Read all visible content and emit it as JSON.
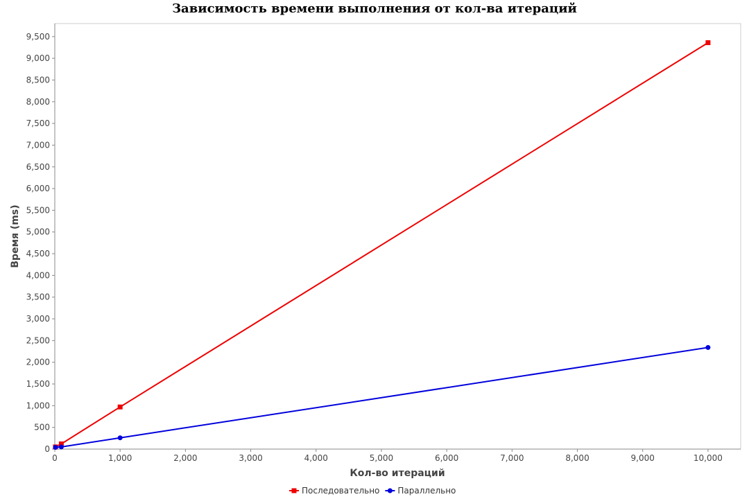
{
  "chart_data": {
    "type": "line",
    "title": "Зависимость времени выполнения от кол-ва итераций",
    "xlabel": "Кол-во итераций",
    "ylabel": "Время (ms)",
    "xlim": [
      0,
      10500
    ],
    "ylim": [
      0,
      9800
    ],
    "x_ticks": [
      0,
      1000,
      2000,
      3000,
      4000,
      5000,
      6000,
      7000,
      8000,
      9000,
      10000
    ],
    "x_tick_labels": [
      "0",
      "1,000",
      "2,000",
      "3,000",
      "4,000",
      "5,000",
      "6,000",
      "7,000",
      "8,000",
      "9,000",
      "10,000"
    ],
    "y_ticks": [
      0,
      500,
      1000,
      1500,
      2000,
      2500,
      3000,
      3500,
      4000,
      4500,
      5000,
      5500,
      6000,
      6500,
      7000,
      7500,
      8000,
      8500,
      9000,
      9500
    ],
    "y_tick_labels": [
      "0",
      "500",
      "1,000",
      "1,500",
      "2,000",
      "2,500",
      "3,000",
      "3,500",
      "4,000",
      "4,500",
      "5,000",
      "5,500",
      "6,000",
      "6,500",
      "7,000",
      "7,500",
      "8,000",
      "8,500",
      "9,000",
      "9,500"
    ],
    "grid": false,
    "legend_position": "bottom-center",
    "series": [
      {
        "name": "Последовательно",
        "color": "#ee0000",
        "marker": "square",
        "x": [
          10,
          100,
          1000,
          10000
        ],
        "y": [
          50,
          120,
          970,
          9360
        ]
      },
      {
        "name": "Параллельно",
        "color": "#0000dd",
        "marker": "circle",
        "x": [
          10,
          100,
          1000,
          10000
        ],
        "y": [
          40,
          50,
          260,
          2340
        ]
      }
    ]
  }
}
